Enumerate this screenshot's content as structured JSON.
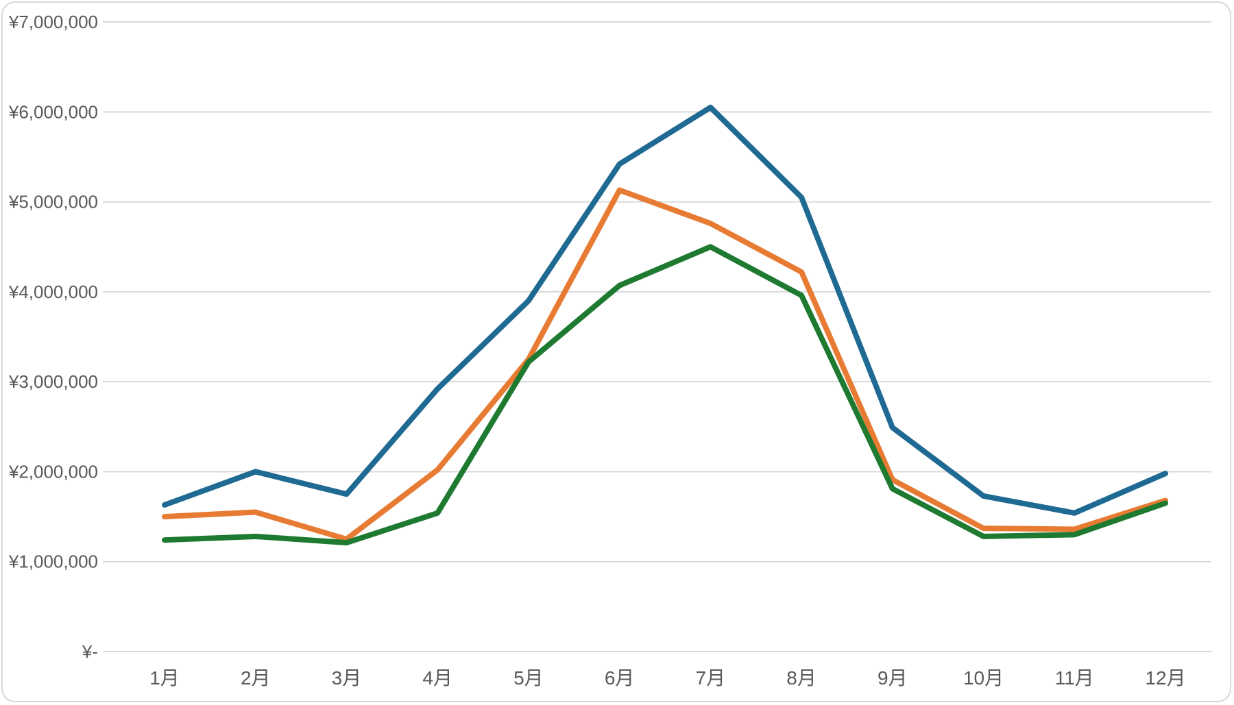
{
  "chart_data": {
    "type": "line",
    "title": "",
    "xlabel": "",
    "ylabel": "",
    "categories": [
      "1月",
      "2月",
      "3月",
      "4月",
      "5月",
      "6月",
      "7月",
      "8月",
      "9月",
      "10月",
      "11月",
      "12月"
    ],
    "series": [
      {
        "name": "blue",
        "color": "#1f6a93",
        "values": [
          1630000,
          2000000,
          1750000,
          2920000,
          3900000,
          5420000,
          6050000,
          5050000,
          2490000,
          1730000,
          1540000,
          1980000
        ]
      },
      {
        "name": "orange",
        "color": "#e87b33",
        "values": [
          1500000,
          1550000,
          1250000,
          2020000,
          3250000,
          5130000,
          4760000,
          4220000,
          1910000,
          1370000,
          1360000,
          1680000
        ]
      },
      {
        "name": "green",
        "color": "#1e7a31",
        "values": [
          1240000,
          1280000,
          1210000,
          1540000,
          3220000,
          4070000,
          4500000,
          3960000,
          1810000,
          1280000,
          1300000,
          1650000
        ]
      }
    ],
    "ylim": [
      0,
      7000000
    ],
    "y_ticks": [
      0,
      1000000,
      2000000,
      3000000,
      4000000,
      5000000,
      6000000,
      7000000
    ],
    "y_tick_labels": [
      "¥-",
      "¥1,000,000",
      "¥2,000,000",
      "¥3,000,000",
      "¥4,000,000",
      "¥5,000,000",
      "¥6,000,000",
      "¥7,000,000"
    ],
    "currency": "JPY",
    "grid": true,
    "legend": "none",
    "style": {
      "background": "#ffffff",
      "gridline_color": "#d9d9d9",
      "tick_label_color": "#595959",
      "frame_border_color": "#d8d8d8"
    }
  }
}
